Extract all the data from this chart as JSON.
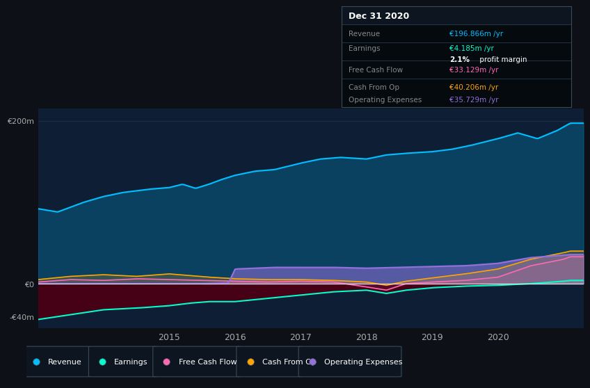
{
  "background_color": "#0d1117",
  "plot_bg_color": "#0e1e35",
  "colors": {
    "revenue": "#00bfff",
    "earnings": "#00ffcc",
    "free_cash_flow": "#ff69b4",
    "cash_from_op": "#ffa500",
    "operating_expenses": "#9370db"
  },
  "info_box": {
    "title": "Dec 31 2020",
    "rows": [
      {
        "label": "Revenue",
        "value": "€196.866m /yr",
        "color_key": "revenue"
      },
      {
        "label": "Earnings",
        "value": "€4.185m /yr",
        "color_key": "earnings"
      },
      {
        "label": "",
        "value": "2.1% profit margin",
        "color_key": "white_bold"
      },
      {
        "label": "Free Cash Flow",
        "value": "€33.129m /yr",
        "color_key": "free_cash_flow"
      },
      {
        "label": "Cash From Op",
        "value": "€40.206m /yr",
        "color_key": "cash_from_op"
      },
      {
        "label": "Operating Expenses",
        "value": "€35.729m /yr",
        "color_key": "operating_expenses"
      }
    ]
  },
  "legend_items": [
    {
      "label": "Revenue",
      "color_key": "revenue"
    },
    {
      "label": "Earnings",
      "color_key": "earnings"
    },
    {
      "label": "Free Cash Flow",
      "color_key": "free_cash_flow"
    },
    {
      "label": "Cash From Op",
      "color_key": "cash_from_op"
    },
    {
      "label": "Operating Expenses",
      "color_key": "operating_expenses"
    }
  ],
  "revenue_t": [
    2013.0,
    2013.3,
    2013.7,
    2014.0,
    2014.3,
    2014.7,
    2015.0,
    2015.2,
    2015.4,
    2015.6,
    2015.8,
    2016.0,
    2016.3,
    2016.6,
    2017.0,
    2017.3,
    2017.6,
    2018.0,
    2018.3,
    2018.6,
    2019.0,
    2019.3,
    2019.6,
    2020.0,
    2020.3,
    2020.6,
    2020.9,
    2021.1
  ],
  "revenue_v": [
    92,
    88,
    100,
    107,
    112,
    116,
    118,
    122,
    117,
    122,
    128,
    133,
    138,
    140,
    148,
    153,
    155,
    153,
    158,
    160,
    162,
    165,
    170,
    178,
    185,
    178,
    188,
    197
  ],
  "earnings_t": [
    2013.0,
    2013.5,
    2014.0,
    2014.5,
    2015.0,
    2015.3,
    2015.6,
    2016.0,
    2016.5,
    2017.0,
    2017.5,
    2018.0,
    2018.3,
    2018.6,
    2019.0,
    2019.5,
    2020.0,
    2020.5,
    2021.0,
    2021.1
  ],
  "earnings_v": [
    -44,
    -38,
    -32,
    -30,
    -27,
    -24,
    -22,
    -22,
    -18,
    -14,
    -10,
    -8,
    -12,
    -8,
    -5,
    -3,
    -2,
    0,
    3,
    4
  ],
  "fcf_t": [
    2013.0,
    2013.5,
    2014.0,
    2014.5,
    2015.0,
    2015.5,
    2016.0,
    2016.5,
    2017.0,
    2017.5,
    2018.0,
    2018.3,
    2018.6,
    2019.0,
    2019.5,
    2020.0,
    2020.5,
    2021.0,
    2021.1
  ],
  "fcf_v": [
    2,
    5,
    4,
    6,
    5,
    4,
    3,
    2,
    3,
    2,
    -4,
    -8,
    0,
    2,
    4,
    8,
    22,
    30,
    33
  ],
  "cashop_t": [
    2013.0,
    2013.5,
    2014.0,
    2014.5,
    2015.0,
    2015.3,
    2015.6,
    2016.0,
    2016.5,
    2017.0,
    2017.5,
    2018.0,
    2018.3,
    2018.6,
    2019.0,
    2019.5,
    2020.0,
    2020.5,
    2021.0,
    2021.1
  ],
  "cashop_v": [
    5,
    9,
    11,
    9,
    12,
    10,
    8,
    6,
    5,
    5,
    4,
    2,
    -2,
    3,
    7,
    12,
    18,
    30,
    38,
    40
  ],
  "opex_t": [
    2013.0,
    2013.5,
    2014.0,
    2014.5,
    2015.0,
    2015.5,
    2015.9,
    2016.0,
    2016.3,
    2016.6,
    2017.0,
    2017.5,
    2018.0,
    2018.5,
    2019.0,
    2019.5,
    2020.0,
    2020.5,
    2021.0,
    2021.1
  ],
  "opex_v": [
    0,
    0,
    0,
    0,
    0,
    0,
    1,
    18,
    19,
    20,
    20,
    20,
    19,
    20,
    21,
    22,
    25,
    32,
    35,
    35.7
  ],
  "xlim": [
    2013.0,
    2021.3
  ],
  "ylim": [
    -55,
    215
  ],
  "xticks": [
    2015,
    2016,
    2017,
    2018,
    2019,
    2020
  ],
  "ytick_vals": [
    -40,
    0,
    200
  ],
  "ytick_labels": [
    "-€40m",
    "€0",
    "€200m"
  ]
}
